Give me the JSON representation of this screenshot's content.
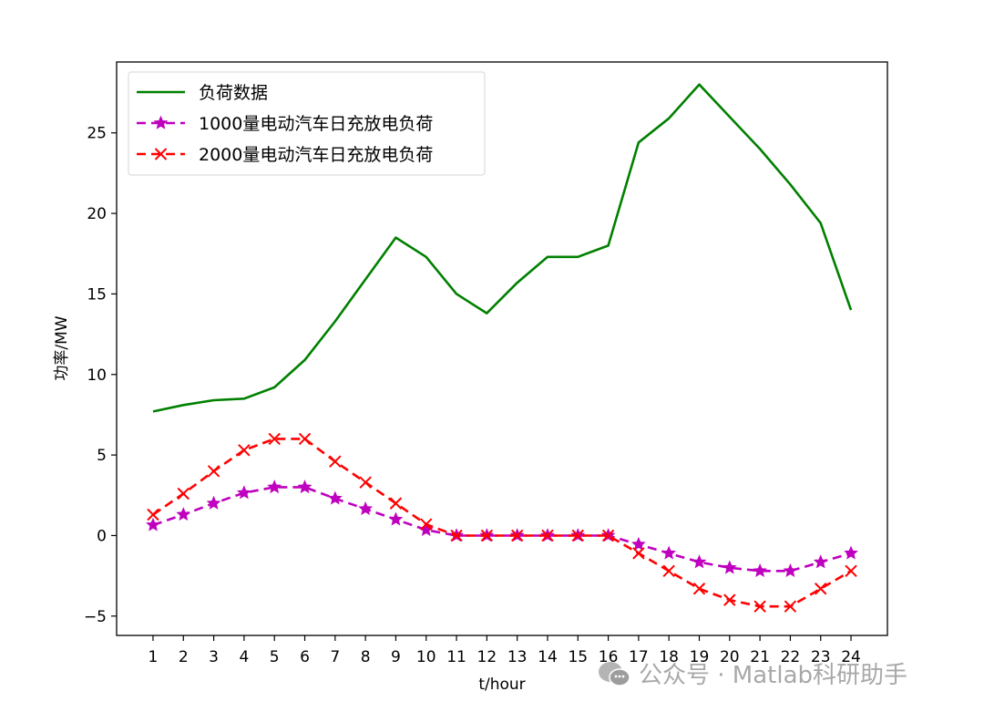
{
  "chart_data": {
    "type": "line",
    "title": "",
    "xlabel": "t/hour",
    "ylabel": "功率/MW",
    "x": [
      1,
      2,
      3,
      4,
      5,
      6,
      7,
      8,
      9,
      10,
      11,
      12,
      13,
      14,
      15,
      16,
      17,
      18,
      19,
      20,
      21,
      22,
      23,
      24
    ],
    "xticks": [
      "1",
      "2",
      "3",
      "4",
      "5",
      "6",
      "7",
      "8",
      "9",
      "10",
      "11",
      "12",
      "13",
      "14",
      "15",
      "16",
      "17",
      "18",
      "19",
      "20",
      "21",
      "22",
      "23",
      "24"
    ],
    "yticks": [
      -5,
      0,
      5,
      10,
      15,
      20,
      25
    ],
    "ylim": [
      -6.2,
      29.4
    ],
    "xlim": [
      -0.2,
      25.2
    ],
    "grid": false,
    "legend_position": "upper left",
    "series": [
      {
        "name": "负荷数据",
        "color": "#008000",
        "style": "solid",
        "marker": "none",
        "values": [
          7.7,
          8.1,
          8.4,
          8.5,
          9.2,
          10.9,
          13.3,
          15.9,
          18.5,
          17.3,
          15.0,
          13.8,
          15.7,
          17.3,
          17.3,
          18.0,
          24.4,
          25.9,
          28.0,
          26.0,
          24.0,
          21.8,
          19.4,
          14.0
        ]
      },
      {
        "name": "1000量电动汽车日充放电负荷",
        "color": "#BF00BF",
        "style": "dashed",
        "marker": "star",
        "values": [
          0.65,
          1.3,
          2.0,
          2.65,
          3.0,
          3.0,
          2.3,
          1.65,
          1.0,
          0.35,
          0,
          0,
          0,
          0,
          0,
          0,
          -0.55,
          -1.1,
          -1.65,
          -2.0,
          -2.2,
          -2.2,
          -1.65,
          -1.1
        ]
      },
      {
        "name": "2000量电动汽车日充放电负荷",
        "color": "#FF0000",
        "style": "dashed",
        "marker": "x",
        "values": [
          1.3,
          2.6,
          4.0,
          5.3,
          6.0,
          6.0,
          4.6,
          3.3,
          2.0,
          0.7,
          0,
          0,
          0,
          0,
          0,
          0,
          -1.1,
          -2.2,
          -3.3,
          -4.0,
          -4.4,
          -4.4,
          -3.3,
          -2.2
        ]
      }
    ]
  },
  "watermark": {
    "text": "公众号 · Matlab科研助手",
    "icon": "wechat-icon"
  }
}
